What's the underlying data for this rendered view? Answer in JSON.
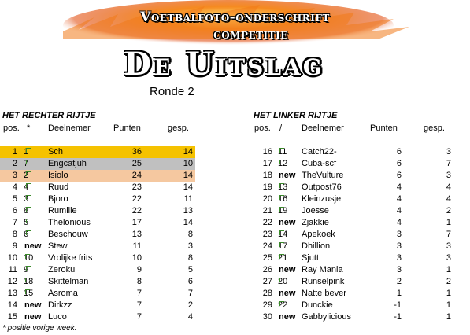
{
  "banner": {
    "line1": "Voetbalfoto-onderschrift",
    "line2": "competitie",
    "line3": "De Uitslag"
  },
  "ronde": "Ronde 2",
  "left": {
    "title": "HET RECHTER RIJTJE",
    "headers": {
      "pos": "pos.",
      "mark": "*",
      "name": "Deelnemer",
      "points": "Punten",
      "played": "gesp."
    },
    "rows": [
      {
        "pos": "1",
        "prev": "1",
        "up": true,
        "name": "Sch",
        "points": "36",
        "played": "14",
        "hl": "hl1"
      },
      {
        "pos": "2",
        "prev": "7",
        "up": true,
        "name": "Engcatjuh",
        "points": "25",
        "played": "10",
        "hl": "hl2"
      },
      {
        "pos": "3",
        "prev": "2",
        "up": true,
        "name": "Isiolo",
        "points": "24",
        "played": "14",
        "hl": "hl3"
      },
      {
        "pos": "4",
        "prev": "4",
        "up": true,
        "name": "Ruud",
        "points": "23",
        "played": "14",
        "hl": ""
      },
      {
        "pos": "5",
        "prev": "3",
        "up": true,
        "name": "Bjoro",
        "points": "22",
        "played": "11",
        "hl": ""
      },
      {
        "pos": "6",
        "prev": "8",
        "up": true,
        "name": "Rumille",
        "points": "22",
        "played": "13",
        "hl": ""
      },
      {
        "pos": "7",
        "prev": "5",
        "up": true,
        "name": "Thelonious",
        "points": "17",
        "played": "14",
        "hl": ""
      },
      {
        "pos": "8",
        "prev": "6",
        "up": true,
        "name": "Beschouw",
        "points": "13",
        "played": "8",
        "hl": ""
      },
      {
        "pos": "9",
        "prev": "new",
        "up": false,
        "name": "Stew",
        "points": "11",
        "played": "3",
        "hl": ""
      },
      {
        "pos": "10",
        "prev": "10",
        "up": true,
        "name": "Vrolijke frits",
        "points": "10",
        "played": "8",
        "hl": ""
      },
      {
        "pos": "11",
        "prev": "9",
        "up": true,
        "name": "Zeroku",
        "points": "9",
        "played": "5",
        "hl": ""
      },
      {
        "pos": "12",
        "prev": "18",
        "up": true,
        "name": "Skittelman",
        "points": "8",
        "played": "6",
        "hl": ""
      },
      {
        "pos": "13",
        "prev": "15",
        "up": true,
        "name": "Asroma",
        "points": "7",
        "played": "7",
        "hl": ""
      },
      {
        "pos": "14",
        "prev": "new",
        "up": false,
        "name": "Dirkzz",
        "points": "7",
        "played": "2",
        "hl": ""
      },
      {
        "pos": "15",
        "prev": "new",
        "up": false,
        "name": "Luco",
        "points": "7",
        "played": "4",
        "hl": ""
      }
    ]
  },
  "right": {
    "title": "HET LINKER RIJTJE",
    "headers": {
      "pos": "pos.",
      "mark": "/",
      "name": "Deelnemer",
      "points": "Punten",
      "played": "gesp."
    },
    "rows": [
      {
        "pos": "16",
        "prev": "11",
        "up": true,
        "name": "Catch22-",
        "points": "6",
        "played": "3"
      },
      {
        "pos": "17",
        "prev": "12",
        "up": true,
        "name": "Cuba-scf",
        "points": "6",
        "played": "7"
      },
      {
        "pos": "18",
        "prev": "new",
        "up": false,
        "name": "TheVulture",
        "points": "6",
        "played": "3"
      },
      {
        "pos": "19",
        "prev": "13",
        "up": true,
        "name": "Outpost76",
        "points": "4",
        "played": "4"
      },
      {
        "pos": "20",
        "prev": "16",
        "up": true,
        "name": "Kleinzusje",
        "points": "4",
        "played": "4"
      },
      {
        "pos": "21",
        "prev": "19",
        "up": true,
        "name": "Joesse",
        "points": "4",
        "played": "2"
      },
      {
        "pos": "22",
        "prev": "new",
        "up": false,
        "name": "Zjakkie",
        "points": "4",
        "played": "1"
      },
      {
        "pos": "23",
        "prev": "14",
        "up": true,
        "name": "Apekoek",
        "points": "3",
        "played": "7"
      },
      {
        "pos": "24",
        "prev": "17",
        "up": true,
        "name": "Dhillion",
        "points": "3",
        "played": "3"
      },
      {
        "pos": "25",
        "prev": "21",
        "up": true,
        "name": "Sjutt",
        "points": "3",
        "played": "3"
      },
      {
        "pos": "26",
        "prev": "new",
        "up": false,
        "name": "Ray Mania",
        "points": "3",
        "played": "1"
      },
      {
        "pos": "27",
        "prev": "20",
        "up": true,
        "name": "Runselpink",
        "points": "2",
        "played": "2"
      },
      {
        "pos": "28",
        "prev": "new",
        "up": false,
        "name": "Natte bever",
        "points": "1",
        "played": "1"
      },
      {
        "pos": "29",
        "prev": "22",
        "up": true,
        "name": "Dunckie",
        "points": "-1",
        "played": "1"
      },
      {
        "pos": "30",
        "prev": "new",
        "up": false,
        "name": "Gabbylicious",
        "points": "-1",
        "played": "1"
      }
    ]
  },
  "footnote": "* positie vorige week.",
  "colors": {
    "gold": "#f5c200",
    "silver": "#c0c0c0",
    "bronze": "#f5c8a0",
    "arrow": "#3a8a2a",
    "flame": "#f07a1a"
  }
}
